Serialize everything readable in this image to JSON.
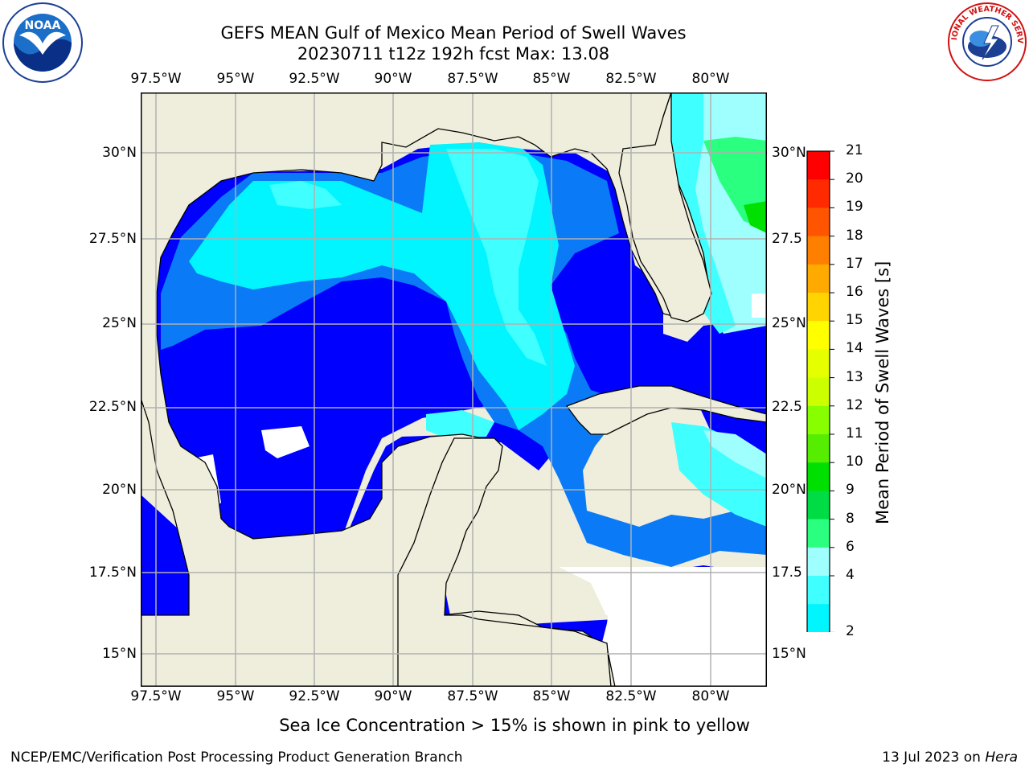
{
  "header": {
    "title_line1": "GEFS MEAN Gulf of Mexico Mean Period of Swell Waves",
    "title_line2": "20230711 t12z 192h fcst   Max: 13.08"
  },
  "logos": {
    "left_text": "NOAA",
    "right_text": "NATIONAL WEATHER SERVICE"
  },
  "map": {
    "lon_labels": [
      "97.5°W",
      "95°W",
      "92.5°W",
      "90°W",
      "87.5°W",
      "85°W",
      "82.5°W",
      "80°W"
    ],
    "lat_labels_left": [
      "30°N",
      "27.5°N",
      "25°N",
      "22.5°N",
      "20°N",
      "17.5°N",
      "15°N"
    ],
    "lat_labels_right": [
      "30°N",
      "27.5",
      "25°N",
      "22.5",
      "20°N",
      "17.5",
      "15°N"
    ],
    "colors": {
      "land": "#efeedc",
      "grid": "#b0b0b0",
      "c2": "#0000ff",
      "c3": "#0a7af7",
      "c4": "#00f5ff",
      "c5": "#40ffff",
      "c6": "#9fffff",
      "c9": "#2bff7f",
      "c10": "#00e000",
      "c12": "#88ff00"
    }
  },
  "colorbar": {
    "label": "Mean Period of Swell Waves [s]",
    "ticks": [
      "21",
      "20",
      "19",
      "18",
      "17",
      "16",
      "15",
      "14",
      "13",
      "12",
      "11",
      "10",
      "9",
      "8",
      "6",
      "4",
      "2"
    ],
    "colors": [
      "#ff0000",
      "#ff2a00",
      "#ff5500",
      "#ff8000",
      "#ffaa00",
      "#ffd400",
      "#ffff00",
      "#e6ff00",
      "#ccff00",
      "#88ff00",
      "#55ee00",
      "#00e000",
      "#00dd44",
      "#2bff7f",
      "#9fffff",
      "#40ffff",
      "#00f5ff",
      "#0a7af7"
    ]
  },
  "footer": {
    "note": "Sea Ice Concentration > 15% is shown in pink to yellow",
    "left": "NCEP/EMC/Verification Post Processing Product Generation Branch",
    "right_date": "13 Jul 2023 on",
    "right_host": "Hera"
  }
}
